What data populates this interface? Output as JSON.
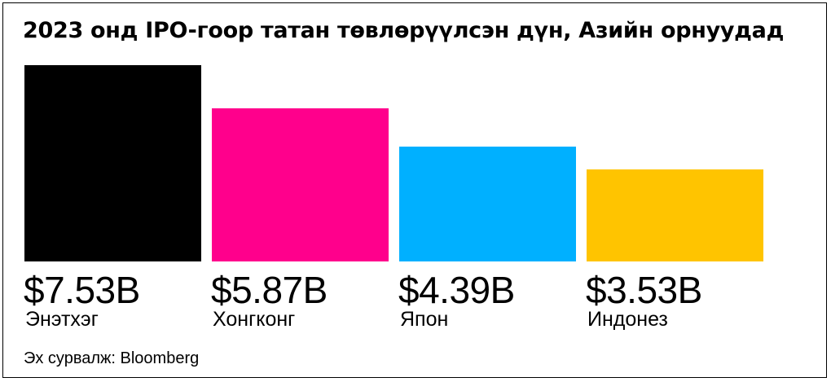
{
  "chart_data": {
    "type": "bar",
    "title": "2023 онд IPO-гоор татан төвлөрүүлсэн дүн, Азийн орнуудад",
    "categories": [
      "Энэтхэг",
      "Хонгконг",
      "Япон",
      "Индонез"
    ],
    "values": [
      7.53,
      5.87,
      4.39,
      3.53
    ],
    "value_labels": [
      "$7.53B",
      "$5.87B",
      "$4.39B",
      "$3.53B"
    ],
    "colors": [
      "#000000",
      "#ff008c",
      "#00b0ff",
      "#ffc400"
    ],
    "ylim": [
      0,
      7.53
    ],
    "grid": false,
    "source": "Эх сурвалж:  Bloomberg"
  }
}
